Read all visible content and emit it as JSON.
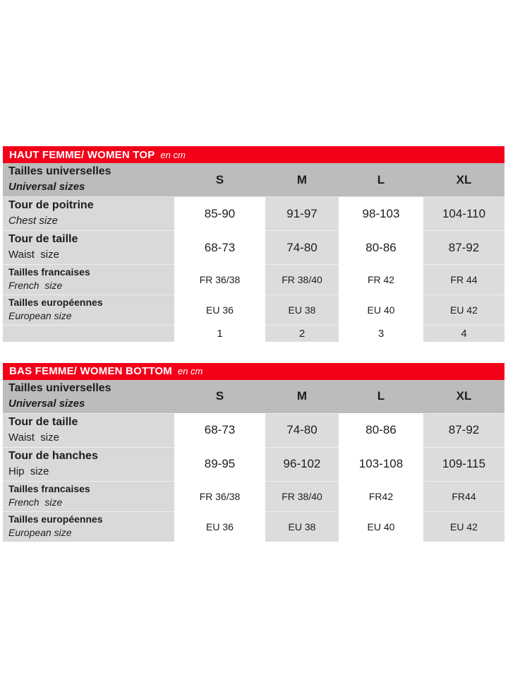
{
  "brand_red": "#f40019",
  "tables": [
    {
      "title": "HAUT FEMME/ WOMEN TOP",
      "unit": "en cm",
      "header": {
        "fr": "Tailles universelles",
        "en": "Universal sizes"
      },
      "columns": [
        "S",
        "M",
        "L",
        "XL"
      ],
      "rows": [
        {
          "fr": "Tour de poitrine",
          "en": "Chest size",
          "values": [
            "85-90",
            "91-97",
            "98-103",
            "104-110"
          ]
        },
        {
          "fr": "Tour de taille",
          "en": "Waist  size",
          "values": [
            "68-73",
            "74-80",
            "80-86",
            "87-92"
          ]
        },
        {
          "fr": "Tailles francaises",
          "en": "French  size",
          "values": [
            "FR 36/38",
            "FR 38/40",
            "FR 42",
            "FR 44"
          ]
        },
        {
          "fr": "Tailles européennes",
          "en": "European size",
          "values": [
            "EU 36",
            "EU 38",
            "EU 40",
            "EU 42"
          ]
        },
        {
          "fr": "",
          "en": "",
          "values": [
            "1",
            "2",
            "3",
            "4"
          ]
        }
      ]
    },
    {
      "title": "BAS FEMME/ WOMEN BOTTOM",
      "unit": "en cm",
      "header": {
        "fr": "Tailles universelles",
        "en": "Universal sizes"
      },
      "columns": [
        "S",
        "M",
        "L",
        "XL"
      ],
      "rows": [
        {
          "fr": "Tour de taille",
          "en": "Waist  size",
          "values": [
            "68-73",
            "74-80",
            "80-86",
            "87-92"
          ]
        },
        {
          "fr": "Tour de hanches",
          "en": "Hip  size",
          "values": [
            "89-95",
            "96-102",
            "103-108",
            "109-115"
          ]
        },
        {
          "fr": "Tailles francaises",
          "en": "French  size",
          "values": [
            "FR 36/38",
            "FR 38/40",
            "FR42",
            "FR44"
          ]
        },
        {
          "fr": "Tailles européennes",
          "en": "European size",
          "values": [
            "EU 36",
            "EU 38",
            "EU 40",
            "EU 42"
          ]
        }
      ]
    }
  ]
}
